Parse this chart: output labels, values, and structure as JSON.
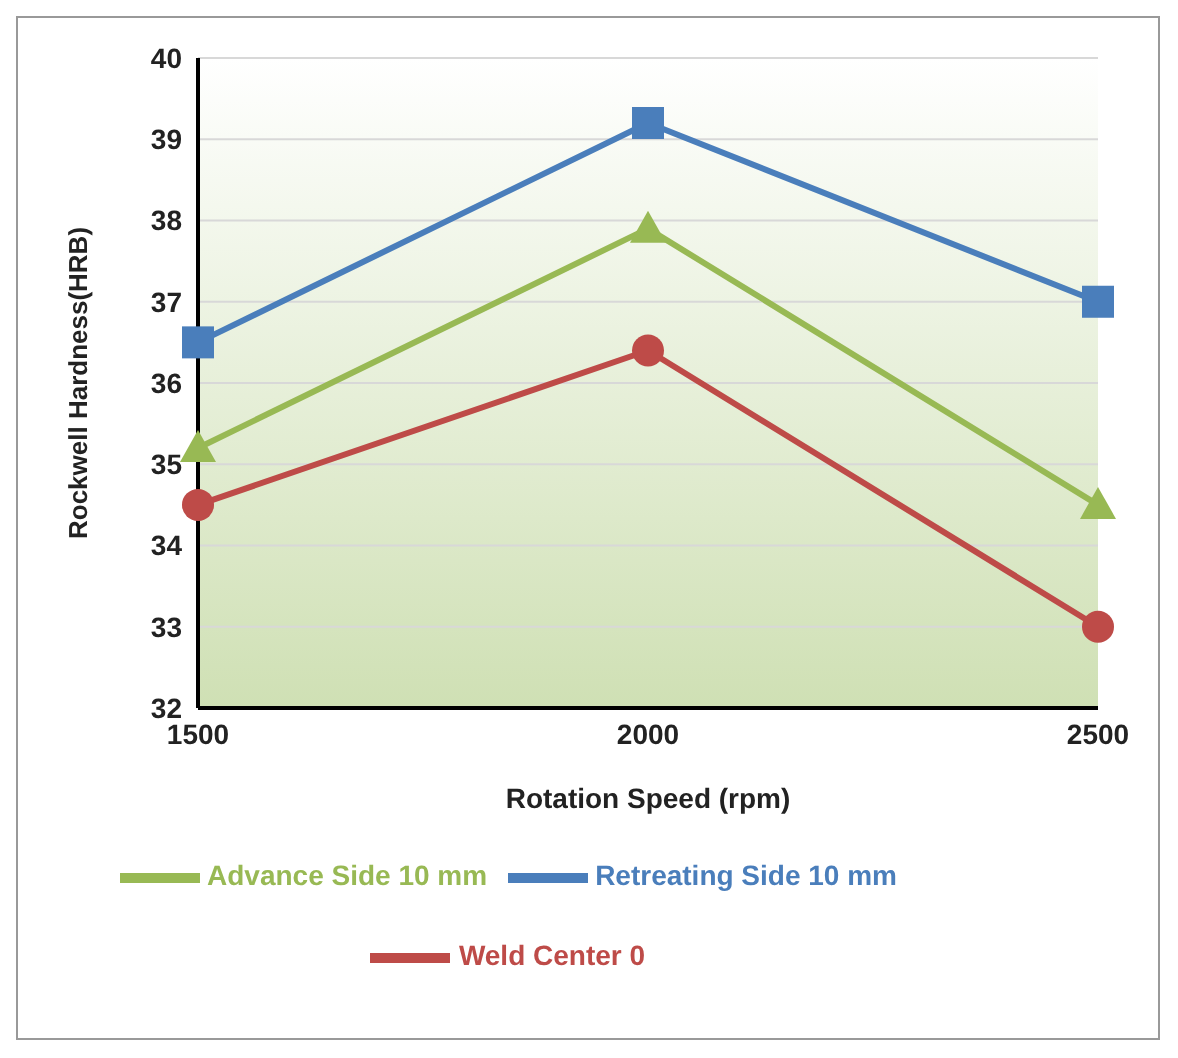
{
  "chart_data": {
    "type": "line",
    "xlabel": "Rotation Speed (rpm)",
    "ylabel": "Rockwell Hardness(HRB)",
    "categories": [
      "1500",
      "2000",
      "2500"
    ],
    "series": [
      {
        "name": "Retreating Side 10 mm",
        "color": "#4a7ebb",
        "marker": "square",
        "values": [
          36.5,
          39.2,
          37.0
        ]
      },
      {
        "name": "Weld Center 0",
        "color": "#be4b48",
        "marker": "circle",
        "values": [
          34.5,
          36.4,
          33.0
        ]
      },
      {
        "name": "Advance Side 10 mm",
        "color": "#98b954",
        "marker": "triangle",
        "values": [
          35.2,
          37.9,
          34.5
        ]
      }
    ],
    "ylim": [
      32,
      40
    ],
    "yticks": [
      32,
      33,
      34,
      35,
      36,
      37,
      38,
      39,
      40
    ],
    "grid": "y",
    "legend": "bottom"
  }
}
